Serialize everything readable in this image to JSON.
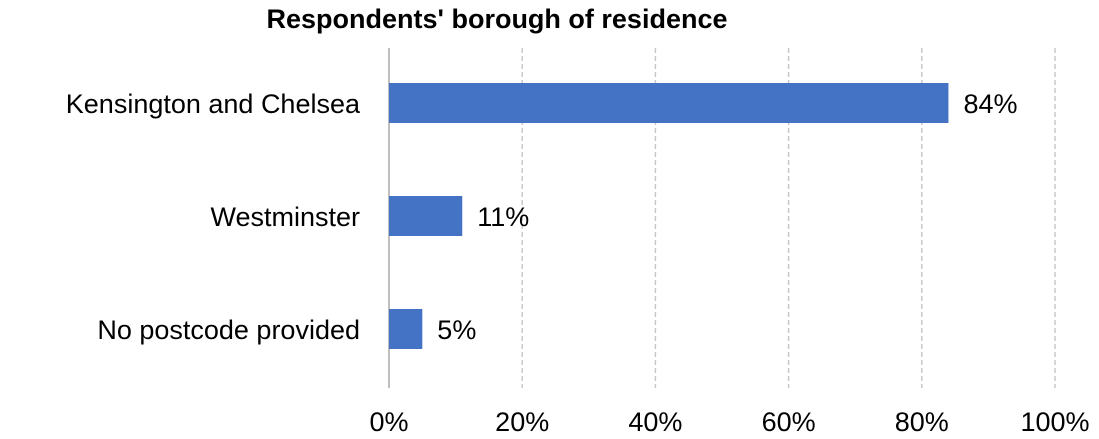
{
  "chart_data": {
    "type": "bar",
    "orientation": "horizontal",
    "title": "Respondents' borough of residence",
    "categories": [
      "Kensington and Chelsea",
      "Westminster",
      "No postcode provided"
    ],
    "values": [
      84,
      11,
      5
    ],
    "value_labels": [
      "84%",
      "11%",
      "5%"
    ],
    "xlim": [
      0,
      100
    ],
    "x_ticks": [
      0,
      20,
      40,
      60,
      80,
      100
    ],
    "x_tick_labels": [
      "0%",
      "20%",
      "40%",
      "60%",
      "80%",
      "100%"
    ],
    "xlabel": "",
    "ylabel": "",
    "grid": "vertical dashed",
    "legend": "none",
    "bar_color": "#4472C4"
  }
}
